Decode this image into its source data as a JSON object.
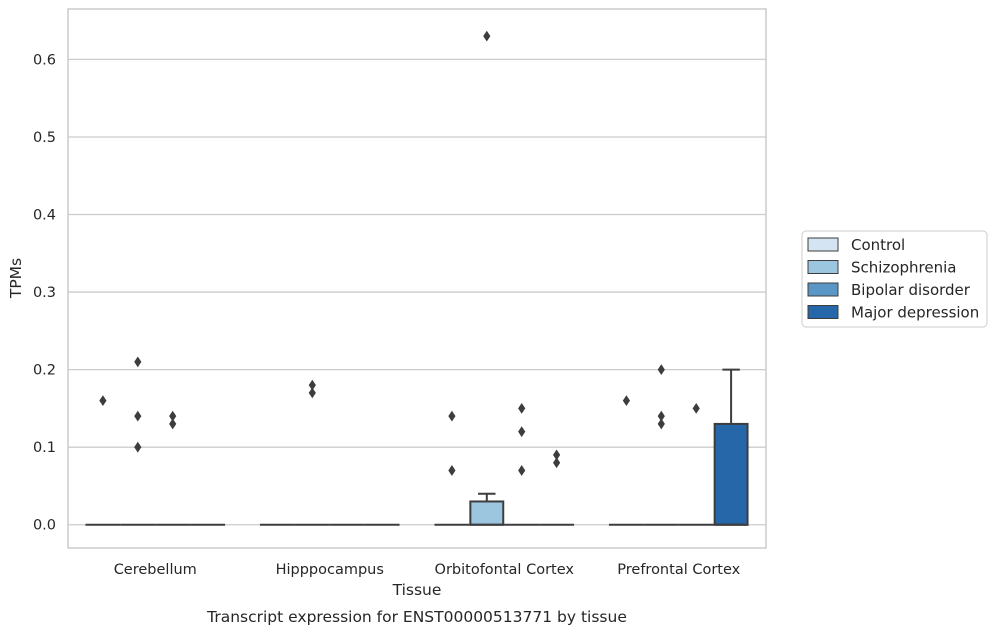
{
  "chart_data": {
    "type": "box",
    "caption": "Transcript expression for ENST00000513771 by tissue",
    "xlabel": "Tissue",
    "ylabel": "TPMs",
    "ylim": [
      -0.03,
      0.665
    ],
    "yticks": [
      0.0,
      0.1,
      0.2,
      0.3,
      0.4,
      0.5,
      0.6
    ],
    "ytick_labels": [
      "0.0",
      "0.1",
      "0.2",
      "0.3",
      "0.4",
      "0.5",
      "0.6"
    ],
    "grid": true,
    "legend_position": "right",
    "categories": [
      "Cerebellum",
      "Hipppocampus",
      "Orbitofontal Cortex",
      "Prefrontal Cortex"
    ],
    "series": [
      {
        "name": "Control",
        "color": "#d4e4f2",
        "boxes": [
          {
            "q1": 0,
            "median": 0,
            "q3": 0,
            "whisker_low": 0,
            "whisker_high": 0,
            "outliers": [
              0.16
            ]
          },
          {
            "q1": 0,
            "median": 0,
            "q3": 0,
            "whisker_low": 0,
            "whisker_high": 0,
            "outliers": []
          },
          {
            "q1": 0,
            "median": 0,
            "q3": 0,
            "whisker_low": 0,
            "whisker_high": 0,
            "outliers": [
              0.14,
              0.07
            ]
          },
          {
            "q1": 0,
            "median": 0,
            "q3": 0,
            "whisker_low": 0,
            "whisker_high": 0,
            "outliers": [
              0.16
            ]
          }
        ]
      },
      {
        "name": "Schizophrenia",
        "color": "#9cc5e0",
        "boxes": [
          {
            "q1": 0,
            "median": 0,
            "q3": 0,
            "whisker_low": 0,
            "whisker_high": 0,
            "outliers": [
              0.1,
              0.21,
              0.14
            ]
          },
          {
            "q1": 0,
            "median": 0,
            "q3": 0,
            "whisker_low": 0,
            "whisker_high": 0,
            "outliers": [
              0.18,
              0.17
            ]
          },
          {
            "q1": 0,
            "median": 0,
            "q3": 0.03,
            "whisker_low": 0,
            "whisker_high": 0.04,
            "outliers": [
              0.63
            ]
          },
          {
            "q1": 0,
            "median": 0,
            "q3": 0,
            "whisker_low": 0,
            "whisker_high": 0,
            "outliers": [
              0.2,
              0.14,
              0.13
            ]
          }
        ]
      },
      {
        "name": "Bipolar disorder",
        "color": "#5a97c7",
        "boxes": [
          {
            "q1": 0,
            "median": 0,
            "q3": 0,
            "whisker_low": 0,
            "whisker_high": 0,
            "outliers": [
              0.14,
              0.13
            ]
          },
          {
            "q1": 0,
            "median": 0,
            "q3": 0,
            "whisker_low": 0,
            "whisker_high": 0,
            "outliers": []
          },
          {
            "q1": 0,
            "median": 0,
            "q3": 0,
            "whisker_low": 0,
            "whisker_high": 0,
            "outliers": [
              0.15,
              0.12,
              0.07
            ]
          },
          {
            "q1": 0,
            "median": 0,
            "q3": 0,
            "whisker_low": 0,
            "whisker_high": 0,
            "outliers": [
              0.15
            ]
          }
        ]
      },
      {
        "name": "Major depression",
        "color": "#2567a8",
        "boxes": [
          {
            "q1": 0,
            "median": 0,
            "q3": 0,
            "whisker_low": 0,
            "whisker_high": 0,
            "outliers": []
          },
          {
            "q1": 0,
            "median": 0,
            "q3": 0,
            "whisker_low": 0,
            "whisker_high": 0,
            "outliers": []
          },
          {
            "q1": 0,
            "median": 0,
            "q3": 0,
            "whisker_low": 0,
            "whisker_high": 0,
            "outliers": [
              0.09,
              0.08
            ]
          },
          {
            "q1": 0,
            "median": 0,
            "q3": 0.13,
            "whisker_low": 0,
            "whisker_high": 0.2,
            "outliers": []
          }
        ]
      }
    ]
  }
}
